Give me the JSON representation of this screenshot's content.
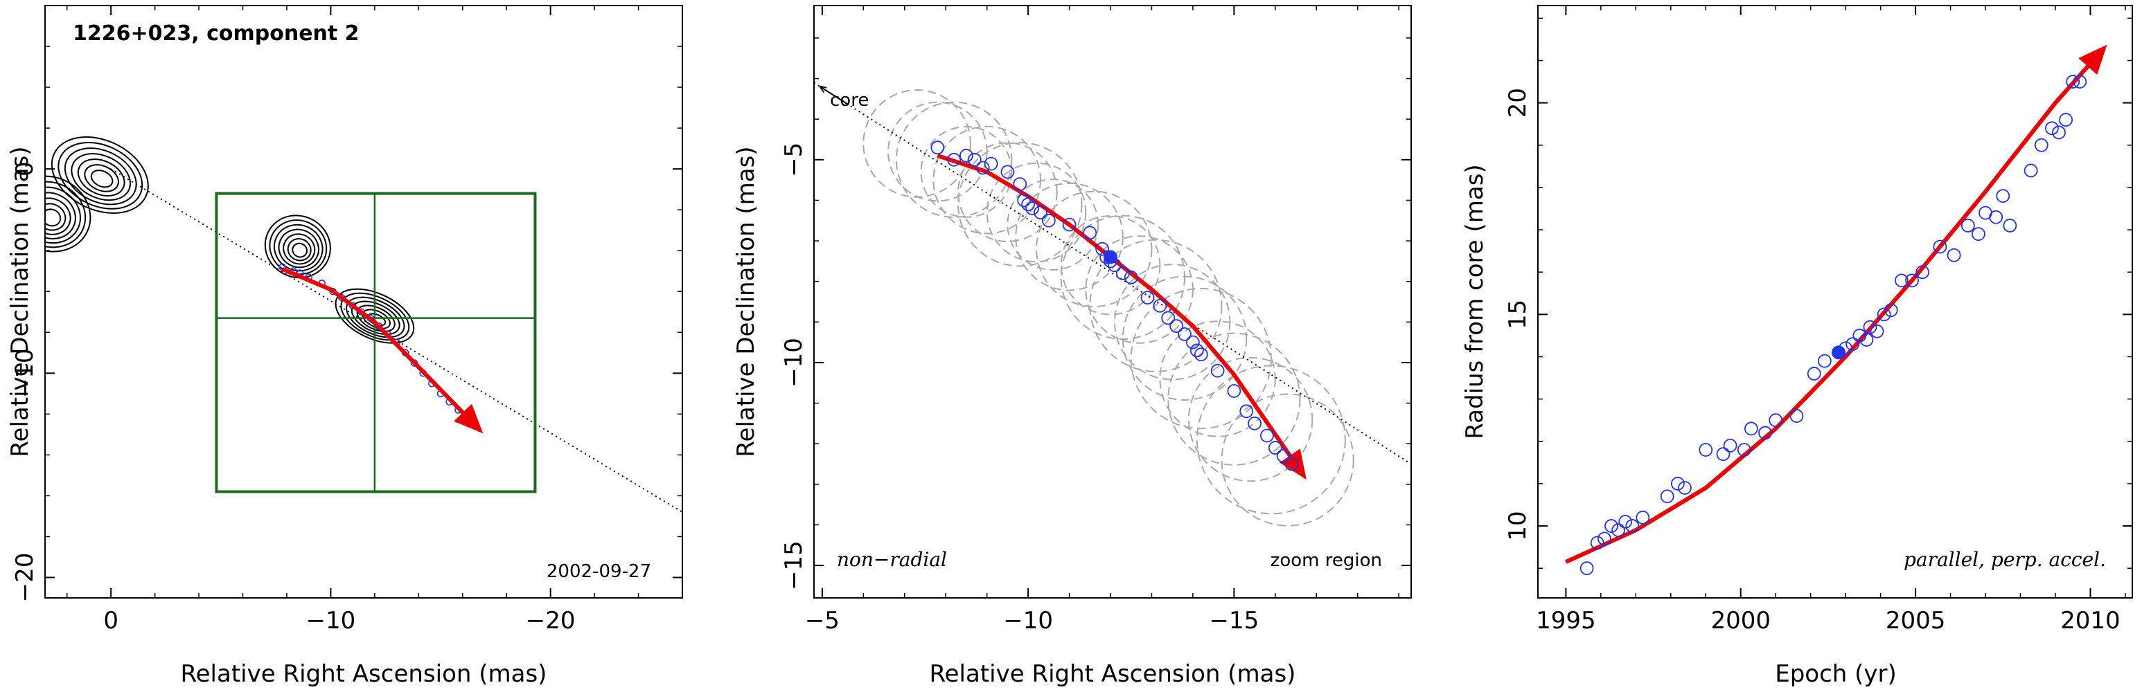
{
  "chart_data": [
    {
      "type": "scatter",
      "title": "1226+023, component 2",
      "xlabel": "Relative Right Ascension (mas)",
      "ylabel": "Relative Declination (mas)",
      "xlim": [
        3,
        -26
      ],
      "ylim": [
        -21,
        8
      ],
      "xticks": [
        0,
        -10,
        -20
      ],
      "yticks": [
        0,
        -10,
        -20
      ],
      "annotation": "2002-09-27",
      "contour_blobs": [
        {
          "x": 0.5,
          "y": -0.3,
          "rx": 2.3,
          "ry": 1.7
        },
        {
          "x": 2.8,
          "y": -2.2,
          "rx": 1.9,
          "ry": 1.8
        },
        {
          "x": -8.5,
          "y": -3.8,
          "rx": 1.5,
          "ry": 1.5
        },
        {
          "x": -12.0,
          "y": -7.2,
          "rx": 1.9,
          "ry": 1.1
        }
      ],
      "zoom_box": {
        "x": [
          -4.8,
          -19.3
        ],
        "y": [
          -1.2,
          -15.8
        ],
        "cross_x": -12.0,
        "cross_y": -7.3
      },
      "track_line": {
        "x": [
          0,
          -26
        ],
        "y": [
          0,
          -16.8
        ]
      },
      "trajectory": {
        "x": [
          -7.8,
          -10,
          -12,
          -14,
          -16.8
        ],
        "y": [
          -4.9,
          -5.9,
          -7.5,
          -9.7,
          -12.8
        ]
      },
      "points": {
        "x": [
          -7.8,
          -8.3,
          -8.6,
          -9.0,
          -9.6,
          -10.1,
          -10.5,
          -11.0,
          -11.4,
          -11.8,
          -12.2,
          -12.6,
          -13.0,
          -13.4,
          -13.8,
          -14.2,
          -14.6,
          -15.0,
          -15.4,
          -15.8,
          -16.2
        ],
        "y": [
          -4.8,
          -5.0,
          -5.1,
          -5.3,
          -5.6,
          -6.0,
          -6.3,
          -6.7,
          -7.0,
          -7.3,
          -7.7,
          -8.1,
          -8.5,
          -9.0,
          -9.5,
          -10.0,
          -10.5,
          -11.0,
          -11.4,
          -11.8,
          -12.2
        ]
      }
    },
    {
      "type": "scatter",
      "xlabel": "Relative Right Ascension (mas)",
      "ylabel": "Relative Declination (mas)",
      "xlim": [
        -4.8,
        -19.3
      ],
      "ylim": [
        -15.8,
        -1.2
      ],
      "xticks": [
        -5,
        -10,
        -15
      ],
      "yticks": [
        -5,
        -10,
        -15
      ],
      "arrow_label": "core",
      "annotation_left": "non−radial",
      "annotation_right": "zoom region",
      "track_line": {
        "x": [
          -4.8,
          -19.3
        ],
        "y": [
          -3.1,
          -12.5
        ]
      },
      "trajectory": {
        "x": [
          -7.8,
          -9,
          -10,
          -11,
          -12,
          -13,
          -14,
          -15,
          -16.7
        ],
        "y": [
          -4.9,
          -5.3,
          -5.9,
          -6.6,
          -7.4,
          -8.2,
          -9.1,
          -10.3,
          -12.8
        ]
      },
      "highlight_point": {
        "x": -12.0,
        "y": -7.4
      },
      "points": {
        "x": [
          -7.8,
          -8.2,
          -8.5,
          -8.7,
          -8.9,
          -9.1,
          -9.5,
          -9.8,
          -9.9,
          -10.0,
          -10.1,
          -10.3,
          -10.5,
          -11.0,
          -11.5,
          -11.8,
          -11.9,
          -12.0,
          -12.1,
          -12.3,
          -12.5,
          -12.9,
          -13.2,
          -13.4,
          -13.6,
          -13.8,
          -14.0,
          -14.1,
          -14.2,
          -14.6,
          -15.0,
          -15.3,
          -15.5,
          -15.8,
          -16.0,
          -16.2,
          -16.4
        ],
        "y": [
          -4.7,
          -5.0,
          -4.9,
          -5.0,
          -5.2,
          -5.1,
          -5.3,
          -5.6,
          -6.0,
          -6.1,
          -6.2,
          -6.3,
          -6.5,
          -6.6,
          -6.8,
          -7.2,
          -7.4,
          -7.5,
          -7.6,
          -7.8,
          -7.9,
          -8.4,
          -8.6,
          -8.9,
          -9.1,
          -9.3,
          -9.5,
          -9.7,
          -9.8,
          -10.2,
          -10.7,
          -11.2,
          -11.5,
          -11.8,
          -12.1,
          -12.3,
          -12.5
        ]
      },
      "error_circles": {
        "x": [
          -7.3,
          -7.8,
          -8.2,
          -8.5,
          -9.0,
          -9.5,
          -9.8,
          -10.2,
          -10.6,
          -11.0,
          -11.6,
          -12.0,
          -12.3,
          -12.7,
          -13.1,
          -13.5,
          -13.8,
          -14.2,
          -14.6,
          -15.0,
          -15.4,
          -15.9,
          -16.3
        ],
        "y": [
          -4.6,
          -4.8,
          -5.0,
          -5.3,
          -5.5,
          -5.8,
          -6.1,
          -6.3,
          -6.6,
          -6.9,
          -7.2,
          -7.6,
          -7.9,
          -8.2,
          -8.6,
          -9.0,
          -9.4,
          -9.9,
          -10.4,
          -10.9,
          -11.4,
          -11.9,
          -12.4
        ],
        "r": [
          1.3,
          1.2,
          1.4,
          1.1,
          1.3,
          1.2,
          1.5,
          1.2,
          1.1,
          1.3,
          1.4,
          1.2,
          1.5,
          1.3,
          1.6,
          1.4,
          1.5,
          1.7,
          1.4,
          1.6,
          1.5,
          1.8,
          1.6
        ]
      }
    },
    {
      "type": "scatter",
      "xlabel": "Epoch (yr)",
      "ylabel": "Radius from core (mas)",
      "xlim": [
        1994.2,
        2011.2
      ],
      "ylim": [
        8.3,
        22.3
      ],
      "xticks": [
        1995,
        2000,
        2005,
        2010
      ],
      "yticks": [
        10,
        15,
        20
      ],
      "annotation": "parallel, perp. accel.",
      "fit_curve": {
        "x": [
          1995,
          1997,
          1999,
          2001,
          2003,
          2005,
          2007,
          2009,
          2010.4
        ],
        "y": [
          9.15,
          9.9,
          10.9,
          12.3,
          14.0,
          15.9,
          17.9,
          20.0,
          21.3
        ]
      },
      "highlight_point": {
        "x": 2002.8,
        "y": 14.1
      },
      "points": {
        "x": [
          1995.6,
          1995.9,
          1996.1,
          1996.3,
          1996.5,
          1996.7,
          1996.9,
          1997.2,
          1997.9,
          1998.2,
          1998.4,
          1999.0,
          1999.5,
          1999.7,
          2000.1,
          2000.3,
          2000.7,
          2001.0,
          2001.6,
          2002.1,
          2002.4,
          2002.8,
          2003.0,
          2003.2,
          2003.4,
          2003.6,
          2003.7,
          2003.9,
          2004.1,
          2004.3,
          2004.6,
          2004.9,
          2005.2,
          2005.7,
          2006.1,
          2006.5,
          2006.8,
          2007.0,
          2007.3,
          2007.5,
          2007.7,
          2008.3,
          2008.6,
          2008.9,
          2009.1,
          2009.3,
          2009.5,
          2009.7
        ],
        "y": [
          9.0,
          9.6,
          9.7,
          10.0,
          9.9,
          10.1,
          10.0,
          10.2,
          10.7,
          11.0,
          10.9,
          11.8,
          11.7,
          11.9,
          11.8,
          12.3,
          12.2,
          12.5,
          12.6,
          13.6,
          13.9,
          14.1,
          14.2,
          14.3,
          14.5,
          14.4,
          14.7,
          14.6,
          15.0,
          15.1,
          15.8,
          15.8,
          16.0,
          16.6,
          16.4,
          17.1,
          16.9,
          17.4,
          17.3,
          17.8,
          17.1,
          18.4,
          19.0,
          19.4,
          19.3,
          19.6,
          20.5,
          20.5
        ]
      }
    }
  ]
}
